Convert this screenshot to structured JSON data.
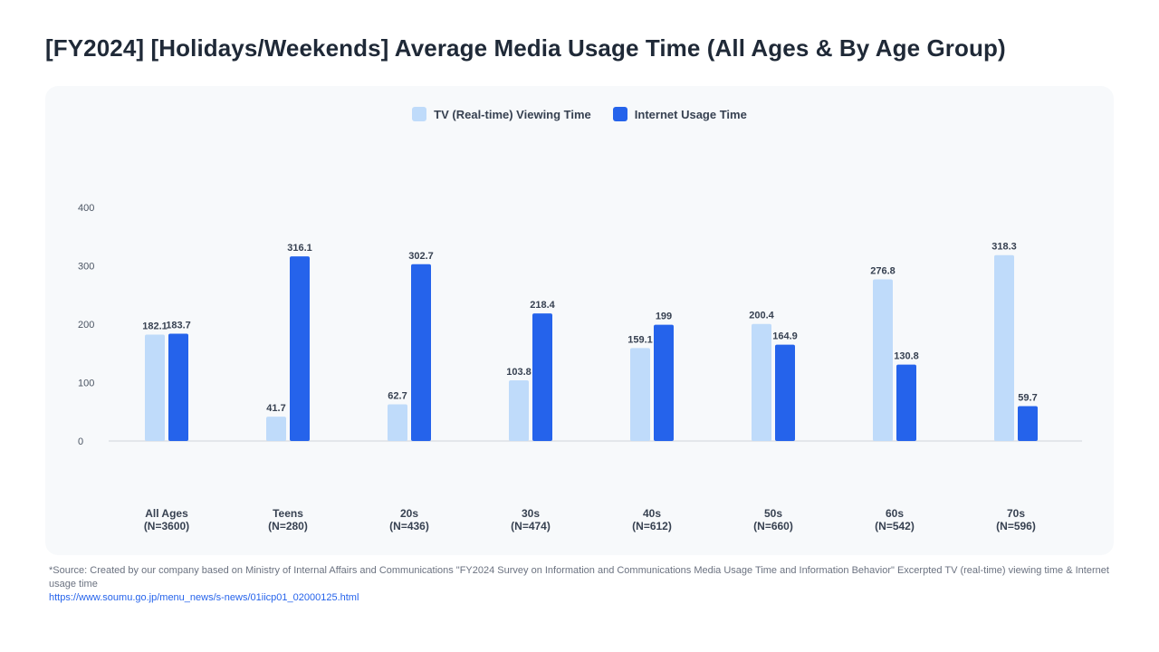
{
  "title": "[FY2024] [Holidays/Weekends] Average Media Usage Time (All Ages & By Age Group)",
  "colors": {
    "tv": "#bfdbfa",
    "internet": "#2563eb",
    "card_bg": "#f7f9fb"
  },
  "chart_data": {
    "type": "bar",
    "categories": [
      [
        "All Ages",
        "(N=3600)"
      ],
      [
        "Teens",
        "(N=280)"
      ],
      [
        "20s",
        "(N=436)"
      ],
      [
        "30s",
        "(N=474)"
      ],
      [
        "40s",
        "(N=612)"
      ],
      [
        "50s",
        "(N=660)"
      ],
      [
        "60s",
        "(N=542)"
      ],
      [
        "70s",
        "(N=596)"
      ]
    ],
    "series": [
      {
        "name": "TV (Real-time) Viewing Time",
        "color": "#bfdbfa",
        "values": [
          182.1,
          41.7,
          62.7,
          103.8,
          159.1,
          200.4,
          276.8,
          318.3
        ],
        "labels": [
          "182.1",
          "41.7",
          "62.7",
          "103.8",
          "159.1",
          "200.4",
          "276.8",
          "318.3"
        ]
      },
      {
        "name": "Internet Usage Time",
        "color": "#2563eb",
        "values": [
          183.7,
          316.1,
          302.7,
          218.4,
          199,
          164.9,
          130.8,
          59.7
        ],
        "labels": [
          "183.7",
          "316.1",
          "302.7",
          "218.4",
          "199",
          "164.9",
          "130.8",
          "59.7"
        ]
      }
    ],
    "yticks": [
      0,
      100,
      200,
      300,
      400
    ],
    "ylim": [
      0,
      400
    ],
    "grid": false,
    "legend": "top-center"
  },
  "source": {
    "text": "*Source: Created by our company based on Ministry of Internal Affairs and Communications \"FY2024 Survey on Information and Communications Media Usage Time and Information Behavior\" Excerpted TV (real-time) viewing time & Internet usage time",
    "link": "https://www.soumu.go.jp/menu_news/s-news/01iicp01_02000125.html"
  }
}
